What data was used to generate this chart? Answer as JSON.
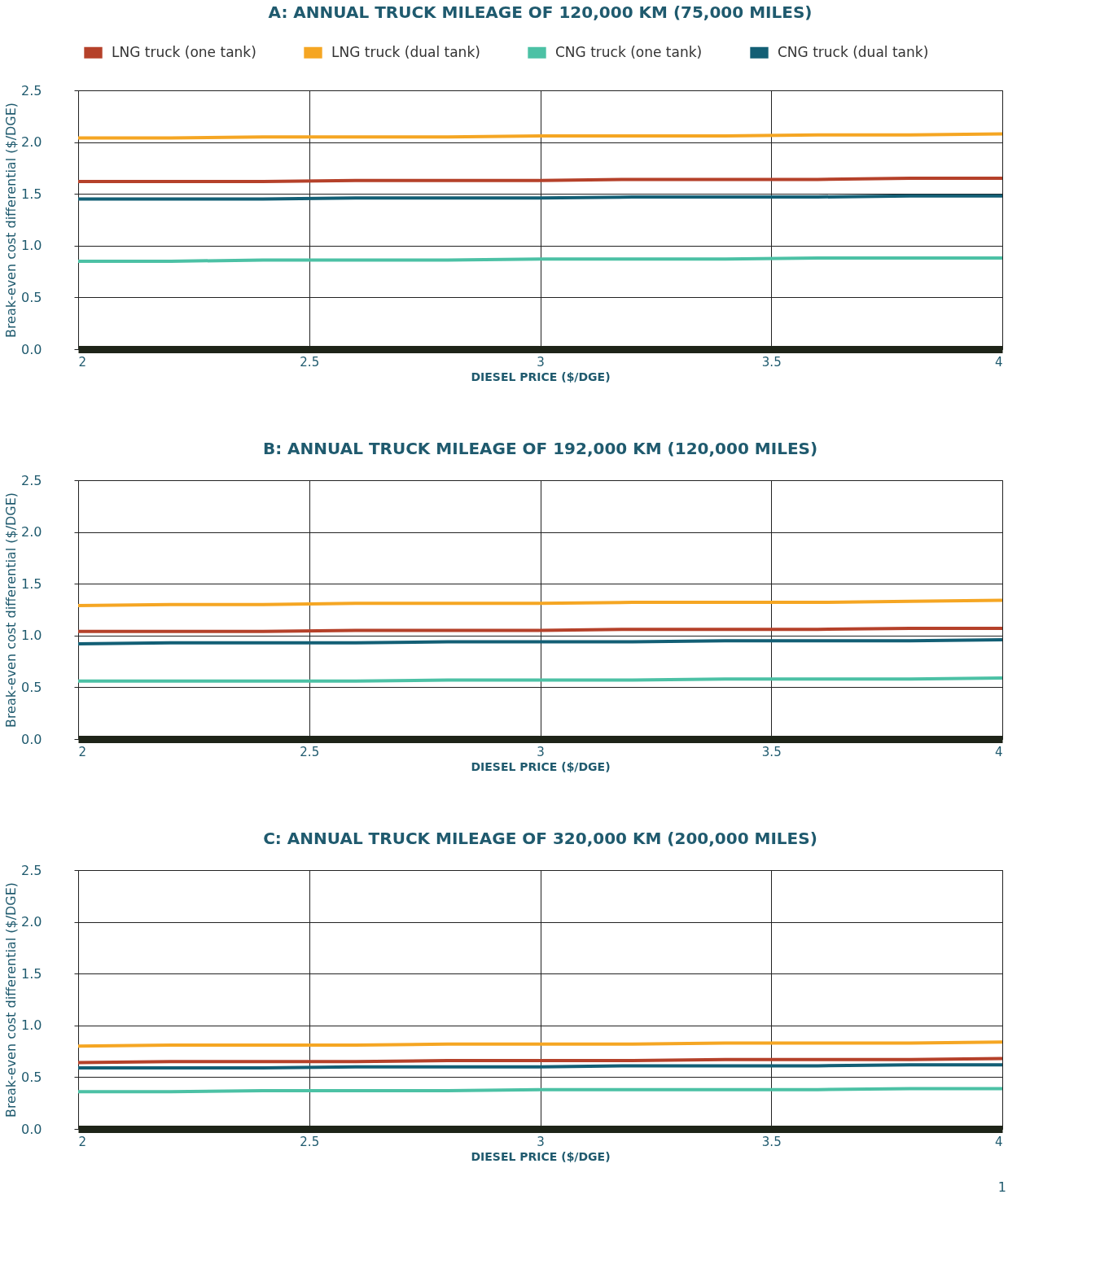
{
  "chart_data": [
    {
      "type": "line",
      "title": "A: ANNUAL TRUCK MILEAGE OF 120,000 KM (75,000 MILES)",
      "xlabel": "DIESEL PRICE ($/DGE)",
      "ylabel": "Break-even cost differential ($/DGE)",
      "legend": "top",
      "grid": true,
      "x": [
        2,
        2.2,
        2.4,
        2.6,
        2.8,
        3,
        3.2,
        3.4,
        3.6,
        3.8,
        4
      ],
      "xlim": [
        2,
        4
      ],
      "xticks": [
        2,
        2.5,
        3,
        3.5,
        4
      ],
      "ylim": [
        0,
        2.5
      ],
      "yticks": [
        {
          "value": 0,
          "label": "0.0"
        },
        0.5,
        {
          "value": 1,
          "label": "1.0"
        },
        1.5,
        {
          "value": 2,
          "label": "2.0"
        },
        2.5
      ],
      "series": [
        {
          "name": "LNG truck (one tank)",
          "color": "#b5412a",
          "values": [
            1.62,
            1.62,
            1.62,
            1.63,
            1.63,
            1.63,
            1.64,
            1.64,
            1.64,
            1.65,
            1.65
          ]
        },
        {
          "name": "LNG truck (dual tank)",
          "color": "#f5a623",
          "values": [
            2.04,
            2.04,
            2.05,
            2.05,
            2.05,
            2.06,
            2.06,
            2.06,
            2.07,
            2.07,
            2.08
          ]
        },
        {
          "name": "CNG truck (one tank)",
          "color": "#4cc1a5",
          "values": [
            0.85,
            0.85,
            0.86,
            0.86,
            0.86,
            0.87,
            0.87,
            0.87,
            0.88,
            0.88,
            0.88
          ]
        },
        {
          "name": "CNG truck (dual tank)",
          "color": "#135f75",
          "values": [
            1.45,
            1.45,
            1.45,
            1.46,
            1.46,
            1.46,
            1.47,
            1.47,
            1.47,
            1.48,
            1.48
          ]
        }
      ]
    },
    {
      "type": "line",
      "title": "B: ANNUAL TRUCK MILEAGE OF 192,000 KM (120,000 MILES)",
      "xlabel": "DIESEL PRICE ($/DGE)",
      "ylabel": "Break-even cost differential ($/DGE)",
      "grid": true,
      "x": [
        2,
        2.2,
        2.4,
        2.6,
        2.8,
        3,
        3.2,
        3.4,
        3.6,
        3.8,
        4
      ],
      "xlim": [
        2,
        4
      ],
      "xticks": [
        2,
        2.5,
        3,
        3.5,
        4
      ],
      "ylim": [
        0,
        2.5
      ],
      "yticks": [
        {
          "value": 0,
          "label": "0.0"
        },
        0.5,
        {
          "value": 1,
          "label": "1.0"
        },
        1.5,
        {
          "value": 2,
          "label": "2.0"
        },
        2.5
      ],
      "series": [
        {
          "color": "#b5412a",
          "values": [
            1.04,
            1.04,
            1.04,
            1.05,
            1.05,
            1.05,
            1.06,
            1.06,
            1.06,
            1.07,
            1.07
          ]
        },
        {
          "color": "#f5a623",
          "values": [
            1.29,
            1.3,
            1.3,
            1.31,
            1.31,
            1.31,
            1.32,
            1.32,
            1.32,
            1.33,
            1.34
          ]
        },
        {
          "color": "#4cc1a5",
          "values": [
            0.56,
            0.56,
            0.56,
            0.56,
            0.57,
            0.57,
            0.57,
            0.58,
            0.58,
            0.58,
            0.59
          ]
        },
        {
          "color": "#135f75",
          "values": [
            0.92,
            0.93,
            0.93,
            0.93,
            0.94,
            0.94,
            0.94,
            0.95,
            0.95,
            0.95,
            0.96
          ]
        }
      ]
    },
    {
      "type": "line",
      "title": "C: ANNUAL TRUCK MILEAGE OF 320,000 KM (200,000 MILES)",
      "xlabel": "DIESEL PRICE ($/DGE)",
      "ylabel": "Break-even cost differential ($/DGE)",
      "grid": true,
      "annotations": [
        "1"
      ],
      "x": [
        2,
        2.2,
        2.4,
        2.6,
        2.8,
        3,
        3.2,
        3.4,
        3.6,
        3.8,
        4
      ],
      "xlim": [
        2,
        4
      ],
      "xticks": [
        2,
        2.5,
        3,
        3.5,
        4
      ],
      "ylim": [
        0,
        2.5
      ],
      "yticks": [
        {
          "value": 0,
          "label": "0.0"
        },
        0.5,
        {
          "value": 1,
          "label": "1.0"
        },
        1.5,
        {
          "value": 2,
          "label": "2.0"
        },
        2.5
      ],
      "series": [
        {
          "color": "#b5412a",
          "values": [
            0.64,
            0.65,
            0.65,
            0.65,
            0.66,
            0.66,
            0.66,
            0.67,
            0.67,
            0.67,
            0.68
          ]
        },
        {
          "color": "#f5a623",
          "values": [
            0.8,
            0.81,
            0.81,
            0.81,
            0.82,
            0.82,
            0.82,
            0.83,
            0.83,
            0.83,
            0.84
          ]
        },
        {
          "color": "#4cc1a5",
          "values": [
            0.36,
            0.36,
            0.37,
            0.37,
            0.37,
            0.38,
            0.38,
            0.38,
            0.38,
            0.39,
            0.39
          ]
        },
        {
          "color": "#135f75",
          "values": [
            0.59,
            0.59,
            0.59,
            0.6,
            0.6,
            0.6,
            0.61,
            0.61,
            0.61,
            0.62,
            0.62
          ]
        }
      ]
    }
  ]
}
